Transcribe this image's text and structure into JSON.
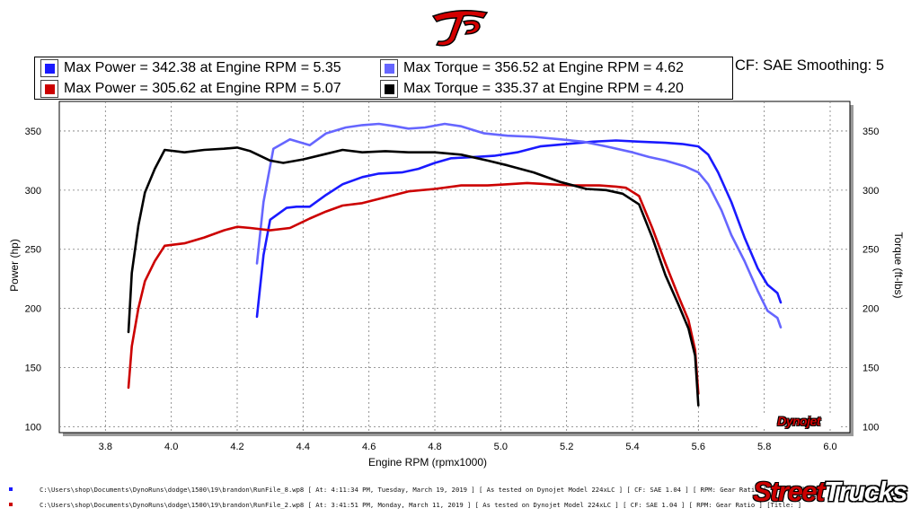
{
  "branding": {
    "top_logo_text": "JP",
    "dyno_logo": "Dynojet",
    "brand_part1": "Street",
    "brand_part2": "Trucks"
  },
  "header": {
    "cf_text": "CF: SAE Smoothing: 5"
  },
  "legend": [
    {
      "label": "Max Power = 342.38 at Engine RPM = 5.35",
      "color": "#1a1aff"
    },
    {
      "label": "Max Torque = 356.52 at Engine RPM = 4.62",
      "color": "#6666ff"
    },
    {
      "label": "Max Power = 305.62 at Engine RPM = 5.07",
      "color": "#cc0000"
    },
    {
      "label": "Max Torque = 335.37 at Engine RPM = 4.20",
      "color": "#000000"
    }
  ],
  "footer": [
    {
      "text": "C:\\Users\\shop\\Documents\\DynoRuns\\dodge\\1500\\19\\brandon\\RunFile_8.wp8  [  At:  4:11:34  PM,  Tuesday,  March  19,  2019  ]  [  As  tested  on  Dynojet  Model  224xLC  ]  [  CF:  SAE  1.04  ]  [  RPM:  Gear  Ratio  ]  [Title:  ]",
      "dot_color": "#1a1aff"
    },
    {
      "text": "C:\\Users\\shop\\Documents\\DynoRuns\\dodge\\1500\\19\\brandon\\RunFile_2.wp8  [  At:  3:41:51  PM,  Monday,  March  11,  2019  ]  [  As  tested  on  Dynojet  Model  224xLC  ]  [  CF:  SAE  1.04  ]  [  RPM:  Gear  Ratio  ]  [Title:  ]",
      "dot_color": "#cc0000"
    }
  ],
  "chart_data": {
    "type": "line",
    "xlabel": "Engine RPM (rpmx1000)",
    "ylabel": "Power (hp)",
    "y2label": "Torque (ft-lbs)",
    "xlim": [
      3.66,
      6.06
    ],
    "ylim": [
      95,
      375
    ],
    "x_ticks": [
      "3.8",
      "4.0",
      "4.2",
      "4.4",
      "4.6",
      "4.8",
      "5.0",
      "5.2",
      "5.4",
      "5.6",
      "5.8",
      "6.0"
    ],
    "y_ticks": [
      "100",
      "150",
      "200",
      "250",
      "300",
      "350"
    ],
    "grid": true,
    "series": [
      {
        "color": "#1a1aff",
        "axis": "left",
        "x": [
          4.26,
          4.28,
          4.3,
          4.35,
          4.38,
          4.42,
          4.47,
          4.52,
          4.58,
          4.63,
          4.7,
          4.75,
          4.8,
          4.85,
          4.92,
          4.98,
          5.05,
          5.12,
          5.2,
          5.28,
          5.35,
          5.42,
          5.5,
          5.55,
          5.6,
          5.63,
          5.66,
          5.7,
          5.74,
          5.78,
          5.81,
          5.84,
          5.85
        ],
        "y": [
          193,
          245,
          275,
          285,
          286,
          286,
          296,
          305,
          311,
          314,
          315,
          318,
          323,
          327,
          328,
          329,
          332,
          337,
          339,
          341,
          342,
          341,
          340,
          339,
          337,
          330,
          315,
          290,
          260,
          234,
          220,
          213,
          205
        ]
      },
      {
        "color": "#6666ff",
        "axis": "right",
        "x": [
          4.26,
          4.28,
          4.31,
          4.36,
          4.42,
          4.47,
          4.53,
          4.58,
          4.63,
          4.68,
          4.72,
          4.77,
          4.83,
          4.88,
          4.95,
          5.02,
          5.1,
          5.18,
          5.25,
          5.32,
          5.4,
          5.45,
          5.5,
          5.56,
          5.6,
          5.63,
          5.67,
          5.7,
          5.74,
          5.78,
          5.81,
          5.84,
          5.85
        ],
        "y": [
          238,
          290,
          335,
          343,
          338,
          348,
          353,
          355,
          356,
          354,
          352,
          353,
          356,
          354,
          348,
          346,
          345,
          343,
          341,
          337,
          332,
          328,
          325,
          320,
          315,
          305,
          283,
          262,
          240,
          215,
          198,
          192,
          184
        ]
      },
      {
        "color": "#cc0000",
        "axis": "left",
        "x": [
          3.87,
          3.88,
          3.9,
          3.92,
          3.95,
          3.98,
          4.04,
          4.1,
          4.16,
          4.2,
          4.24,
          4.3,
          4.36,
          4.42,
          4.47,
          4.52,
          4.58,
          4.65,
          4.72,
          4.8,
          4.88,
          4.96,
          5.02,
          5.08,
          5.15,
          5.22,
          5.3,
          5.35,
          5.38,
          5.42,
          5.46,
          5.5,
          5.54,
          5.57,
          5.59,
          5.6
        ],
        "y": [
          133,
          168,
          200,
          223,
          240,
          253,
          255,
          260,
          266,
          269,
          268,
          266,
          268,
          276,
          282,
          287,
          289,
          294,
          299,
          301,
          304,
          304,
          305,
          306,
          305,
          304,
          304,
          303,
          302,
          295,
          268,
          238,
          210,
          190,
          165,
          128
        ]
      },
      {
        "color": "#000000",
        "axis": "right",
        "x": [
          3.87,
          3.88,
          3.9,
          3.92,
          3.95,
          3.98,
          4.04,
          4.1,
          4.16,
          4.2,
          4.24,
          4.3,
          4.34,
          4.4,
          4.46,
          4.52,
          4.58,
          4.65,
          4.72,
          4.8,
          4.88,
          4.96,
          5.02,
          5.1,
          5.18,
          5.26,
          5.32,
          5.37,
          5.42,
          5.46,
          5.5,
          5.54,
          5.57,
          5.59,
          5.6
        ],
        "y": [
          180,
          230,
          270,
          298,
          318,
          334,
          332,
          334,
          335,
          336,
          333,
          325,
          323,
          326,
          330,
          334,
          332,
          333,
          332,
          332,
          330,
          325,
          321,
          315,
          307,
          301,
          300,
          297,
          288,
          260,
          228,
          203,
          183,
          160,
          118
        ]
      }
    ]
  }
}
